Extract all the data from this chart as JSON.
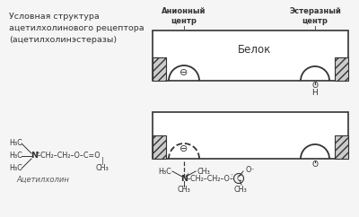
{
  "bg_color": "#e8e8e8",
  "panel_bg": "#f5f5f5",
  "title_text": "Условная структура\nацетилхолинового рецептора\n(ацетилхолинэстеразы)",
  "anionic_label": "Анионный\nцентр",
  "esterase_label": "Эстеразный\nцентр",
  "protein_label": "Белок",
  "acetylcholine_label": "Ацетилхолин",
  "minus_symbol": "Θ",
  "font_size_labels": 6.0,
  "font_size_chem": 5.8
}
